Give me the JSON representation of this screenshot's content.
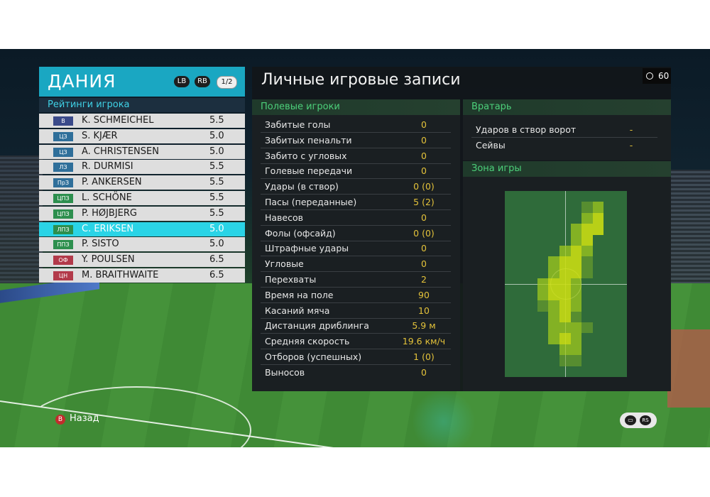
{
  "team": {
    "name": "ДАНИЯ",
    "lb_label": "LB",
    "rb_label": "RB",
    "page": "1/2"
  },
  "ratings_title": "Рейтинги игрока",
  "players": [
    {
      "pos": "В",
      "pos_color": "#3a4a8a",
      "name": "K. SCHMEICHEL",
      "rating": "5.5"
    },
    {
      "pos": "ЦЗ",
      "pos_color": "#2f6f9a",
      "name": "S. KJÆR",
      "rating": "5.0"
    },
    {
      "pos": "ЦЗ",
      "pos_color": "#2f6f9a",
      "name": "A. CHRISTENSEN",
      "rating": "5.0"
    },
    {
      "pos": "ЛЗ",
      "pos_color": "#2f6f9a",
      "name": "R. DURMISI",
      "rating": "5.5"
    },
    {
      "pos": "ПрЗ",
      "pos_color": "#2f6f9a",
      "name": "P. ANKERSEN",
      "rating": "5.5"
    },
    {
      "pos": "ЦПЗ",
      "pos_color": "#2d8f4e",
      "name": "L. SCHÖNE",
      "rating": "5.5"
    },
    {
      "pos": "ЦПЗ",
      "pos_color": "#2d8f4e",
      "name": "P. HØJBJERG",
      "rating": "5.5"
    },
    {
      "pos": "ЛПЗ",
      "pos_color": "#2d8f4e",
      "name": "C. ERIKSEN",
      "rating": "5.0"
    },
    {
      "pos": "ППЗ",
      "pos_color": "#2d8f4e",
      "name": "P. SISTO",
      "rating": "5.0"
    },
    {
      "pos": "ОФ",
      "pos_color": "#b23a4a",
      "name": "Y. POULSEN",
      "rating": "6.5"
    },
    {
      "pos": "ЦН",
      "pos_color": "#b23a4a",
      "name": "M. BRAITHWAITE",
      "rating": "6.5"
    }
  ],
  "main": {
    "title": "Личные игровые записи",
    "timer": "60",
    "field_section": "Полевые игроки",
    "gk_section": "Вратарь",
    "zone_section": "Зона игры"
  },
  "field_stats": [
    {
      "label": "Забитые голы",
      "value": "0"
    },
    {
      "label": "Забитых пенальти",
      "value": "0"
    },
    {
      "label": "Забито с угловых",
      "value": "0"
    },
    {
      "label": "Голевые передачи",
      "value": "0"
    },
    {
      "label": "Удары (в створ)",
      "value": "0 (0)"
    },
    {
      "label": "Пасы (переданные)",
      "value": "5 (2)"
    },
    {
      "label": "Навесов",
      "value": "0"
    },
    {
      "label": "Фолы (офсайд)",
      "value": "0 (0)"
    },
    {
      "label": "Штрафные удары",
      "value": "0"
    },
    {
      "label": "Угловые",
      "value": "0"
    },
    {
      "label": "Перехваты",
      "value": "2"
    },
    {
      "label": "Время на поле",
      "value": "90"
    },
    {
      "label": "Касаний мяча",
      "value": "10"
    },
    {
      "label": "Дистанция дриблинга",
      "value": "5.9 м"
    },
    {
      "label": "Средняя скорость",
      "value": "19.6 км/ч"
    },
    {
      "label": "Отборов (успешных)",
      "value": "1 (0)"
    },
    {
      "label": "Выносов",
      "value": "0"
    }
  ],
  "gk_stats": [
    {
      "label": "Ударов в створ ворот",
      "value": "-"
    },
    {
      "label": "Сейвы",
      "value": "-"
    }
  ],
  "footer": {
    "back_icon": "B",
    "back_label": "Назад",
    "chat_icon": "chat-icon",
    "rs_label": "RS"
  },
  "colors": {
    "accent": "#1aa7c2",
    "selected_row": "#2ad4e6",
    "stat_value": "#e3c23a",
    "section_text": "#4cd07a"
  }
}
